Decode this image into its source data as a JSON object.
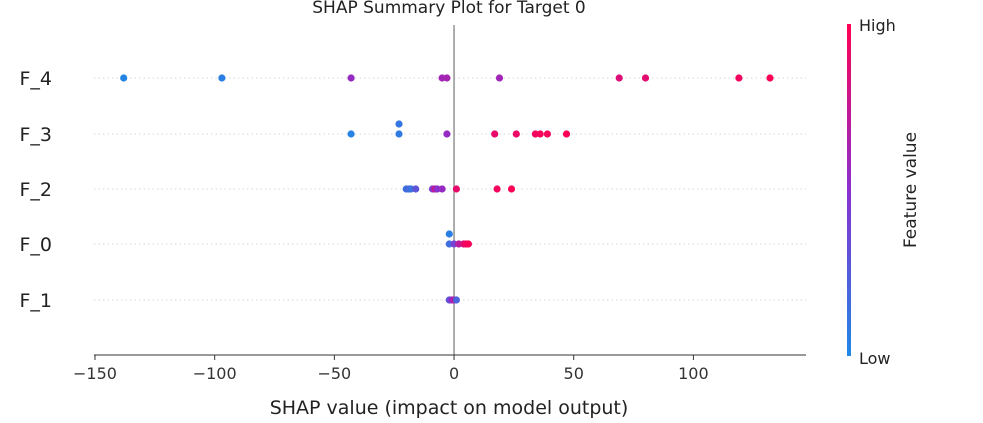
{
  "chart_data": {
    "type": "scatter",
    "title": "SHAP Summary Plot for Target 0",
    "xlabel": "SHAP value (impact on model output)",
    "ylabel": "",
    "xlim": [
      -155,
      148
    ],
    "xticks": [
      -150,
      -100,
      -50,
      0,
      50,
      100
    ],
    "xtick_labels": [
      "−150",
      "−100",
      "−50",
      "0",
      "50",
      "100"
    ],
    "features": [
      "F_4",
      "F_3",
      "F_2",
      "F_0",
      "F_1"
    ],
    "grid": false,
    "zero_line": true,
    "colors": {
      "low": "#1f88e5",
      "high": "#ff0052",
      "zero_line": "#999999",
      "row_line": "#d8d8d8"
    },
    "colorbar": {
      "label": "Feature value",
      "high_label": "High",
      "low_label": "Low",
      "position": "right"
    },
    "points": [
      {
        "feature": "F_4",
        "shap": -138,
        "value": 0.02
      },
      {
        "feature": "F_4",
        "shap": -97,
        "value": 0.05
      },
      {
        "feature": "F_4",
        "shap": -43,
        "value": 0.55
      },
      {
        "feature": "F_4",
        "shap": -5,
        "value": 0.6
      },
      {
        "feature": "F_4",
        "shap": -3,
        "value": 0.62
      },
      {
        "feature": "F_4",
        "shap": 19,
        "value": 0.6
      },
      {
        "feature": "F_4",
        "shap": 69,
        "value": 0.85
      },
      {
        "feature": "F_4",
        "shap": 80,
        "value": 0.88
      },
      {
        "feature": "F_4",
        "shap": 119,
        "value": 0.95
      },
      {
        "feature": "F_4",
        "shap": 132,
        "value": 0.98
      },
      {
        "feature": "F_3",
        "shap": -43,
        "value": 0.03
      },
      {
        "feature": "F_3",
        "shap": -23,
        "value": 0.1,
        "offset": 1
      },
      {
        "feature": "F_3",
        "shap": -23,
        "value": 0.08
      },
      {
        "feature": "F_3",
        "shap": -3,
        "value": 0.55
      },
      {
        "feature": "F_3",
        "shap": 17,
        "value": 0.9
      },
      {
        "feature": "F_3",
        "shap": 26,
        "value": 0.92
      },
      {
        "feature": "F_3",
        "shap": 34,
        "value": 0.95
      },
      {
        "feature": "F_3",
        "shap": 36,
        "value": 0.97
      },
      {
        "feature": "F_3",
        "shap": 39,
        "value": 0.96
      },
      {
        "feature": "F_3",
        "shap": 47,
        "value": 0.99
      },
      {
        "feature": "F_2",
        "shap": -20,
        "value": 0.15
      },
      {
        "feature": "F_2",
        "shap": -19,
        "value": 0.18
      },
      {
        "feature": "F_2",
        "shap": -18,
        "value": 0.12
      },
      {
        "feature": "F_2",
        "shap": -16,
        "value": 0.3
      },
      {
        "feature": "F_2",
        "shap": -9,
        "value": 0.45
      },
      {
        "feature": "F_2",
        "shap": -8,
        "value": 0.75
      },
      {
        "feature": "F_2",
        "shap": -7,
        "value": 0.5
      },
      {
        "feature": "F_2",
        "shap": -5,
        "value": 0.55
      },
      {
        "feature": "F_2",
        "shap": 1,
        "value": 0.9
      },
      {
        "feature": "F_2",
        "shap": 18,
        "value": 0.95
      },
      {
        "feature": "F_2",
        "shap": 24,
        "value": 0.98
      },
      {
        "feature": "F_0",
        "shap": -2,
        "value": 0.05,
        "offset": 1
      },
      {
        "feature": "F_0",
        "shap": -2,
        "value": 0.15
      },
      {
        "feature": "F_0",
        "shap": 0,
        "value": 0.4
      },
      {
        "feature": "F_0",
        "shap": 2,
        "value": 0.7
      },
      {
        "feature": "F_0",
        "shap": 4,
        "value": 0.85
      },
      {
        "feature": "F_0",
        "shap": 5,
        "value": 0.95
      },
      {
        "feature": "F_0",
        "shap": 6,
        "value": 0.98
      },
      {
        "feature": "F_1",
        "shap": -2,
        "value": 0.3
      },
      {
        "feature": "F_1",
        "shap": -1,
        "value": 0.5
      },
      {
        "feature": "F_1",
        "shap": 0,
        "value": 0.7
      },
      {
        "feature": "F_1",
        "shap": 1,
        "value": 0.2
      }
    ]
  }
}
